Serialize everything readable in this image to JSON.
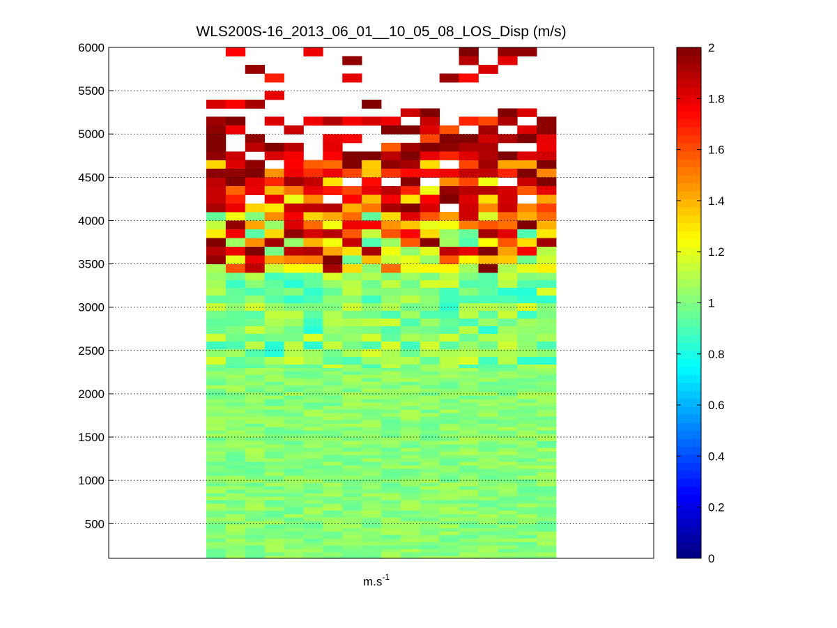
{
  "chart_data": {
    "type": "heatmap",
    "title": "WLS200S-16_2013_06_01__10_05_08_LOS_Disp (m/s)",
    "xlabel": "m.s",
    "xlabel_superscript": "-1",
    "ylabel": "",
    "ylim": [
      100,
      6000
    ],
    "y_ticks": [
      500,
      1000,
      1500,
      2000,
      2500,
      3000,
      3500,
      4000,
      4500,
      5000,
      5500,
      6000
    ],
    "y_tick_labels": [
      "500",
      "1000",
      "1500",
      "2000",
      "2500",
      "3000",
      "3500",
      "4000",
      "4500",
      "5000",
      "5500",
      "6000"
    ],
    "grid": "horizontal dotted at y ticks",
    "colormap": "jet",
    "colorbar": {
      "position": "right",
      "clim": [
        0,
        2
      ],
      "ticks": [
        0,
        0.2,
        0.4,
        0.6,
        0.8,
        1,
        1.2,
        1.4,
        1.6,
        1.8,
        2
      ],
      "tick_labels": [
        "0",
        "0.2",
        "0.4",
        "0.6",
        "0.8",
        "1",
        "1.2",
        "1.4",
        "1.6",
        "1.8",
        "2"
      ]
    },
    "columns": 18,
    "altitude_range": [
      100,
      6000
    ],
    "bands": [
      {
        "y0": 100,
        "y1": 2300,
        "value_mean": 1.02,
        "value_spread": 0.08,
        "missing_prob": 0,
        "hot_prob": 0
      },
      {
        "y0": 2300,
        "y1": 3400,
        "value_mean": 1.0,
        "value_spread": 0.18,
        "missing_prob": 0,
        "hot_prob": 0
      },
      {
        "y0": 3400,
        "y1": 4100,
        "value_mean": 1.25,
        "value_spread": 0.35,
        "missing_prob": 0,
        "hot_prob": 0.3
      },
      {
        "y0": 4100,
        "y1": 4700,
        "value_mean": 1.55,
        "value_spread": 0.35,
        "missing_prob": 0.05,
        "hot_prob": 0.5
      },
      {
        "y0": 4700,
        "y1": 5200,
        "value_mean": 1.8,
        "value_spread": 0.3,
        "missing_prob": 0.3,
        "hot_prob": 0.6
      },
      {
        "y0": 5200,
        "y1": 6000,
        "value_mean": 1.85,
        "value_spread": 0.2,
        "missing_prob": 0.88,
        "hot_prob": 0.7
      }
    ],
    "colors": {
      "background": "#ffffff",
      "axes": "#000000",
      "missing": "#ffffff"
    }
  }
}
